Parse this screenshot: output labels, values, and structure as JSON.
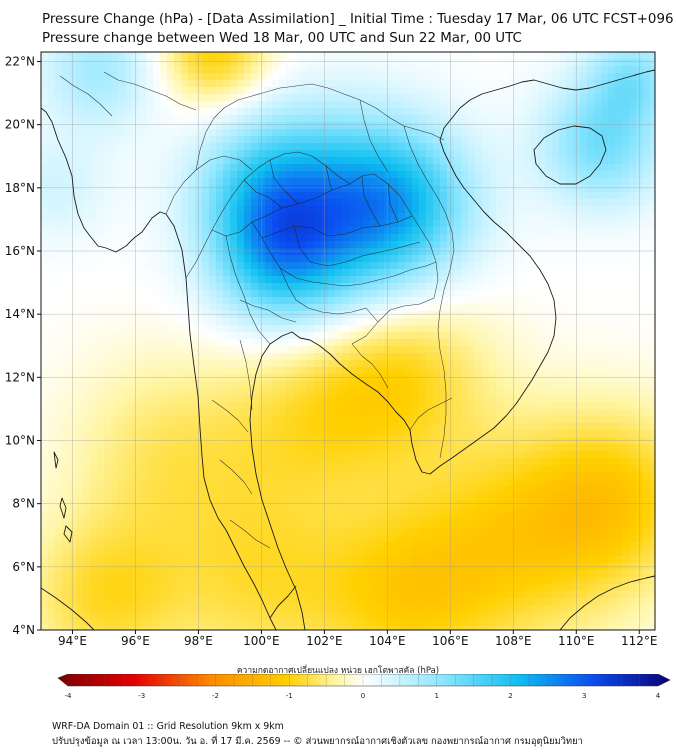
{
  "header": {
    "title_line1": "Pressure Change (hPa) - [Data Assimilation] _ Initial Time : Tuesday 17 Mar, 06 UTC FCST+096",
    "title_line2": "Pressure change between Wed 18 Mar, 00 UTC and Sun 22 Mar, 00 UTC"
  },
  "map": {
    "lon_range": [
      93,
      112.5
    ],
    "lat_range": [
      4,
      22.3
    ],
    "lat_ticks": [
      {
        "value": 22,
        "label": "22°N"
      },
      {
        "value": 20,
        "label": "20°N"
      },
      {
        "value": 18,
        "label": "18°N"
      },
      {
        "value": 16,
        "label": "16°N"
      },
      {
        "value": 14,
        "label": "14°N"
      },
      {
        "value": 12,
        "label": "12°N"
      },
      {
        "value": 10,
        "label": "10°N"
      },
      {
        "value": 8,
        "label": "8°N"
      },
      {
        "value": 6,
        "label": "6°N"
      },
      {
        "value": 4,
        "label": "4°N"
      }
    ],
    "lon_ticks": [
      {
        "value": 94,
        "label": "94°E"
      },
      {
        "value": 96,
        "label": "96°E"
      },
      {
        "value": 98,
        "label": "98°E"
      },
      {
        "value": 100,
        "label": "100°E"
      },
      {
        "value": 102,
        "label": "102°E"
      },
      {
        "value": 104,
        "label": "104°E"
      },
      {
        "value": 106,
        "label": "106°E"
      },
      {
        "value": 108,
        "label": "108°E"
      },
      {
        "value": 110,
        "label": "110°E"
      },
      {
        "value": 112,
        "label": "112°E"
      }
    ],
    "field_centers": [
      {
        "lon": 102.5,
        "lat": 17.0,
        "value": 1.8,
        "spread": 2.2
      },
      {
        "lon": 100.2,
        "lat": 17.8,
        "value": 1.3,
        "spread": 1.6
      },
      {
        "lon": 104.5,
        "lat": 17.6,
        "value": 1.2,
        "spread": 1.6
      },
      {
        "lon": 100.5,
        "lat": 15.6,
        "value": 1.1,
        "spread": 1.4
      },
      {
        "lon": 110.8,
        "lat": 19.4,
        "value": 1.2,
        "spread": 1.4
      },
      {
        "lon": 111.8,
        "lat": 21.5,
        "value": 0.9,
        "spread": 1.0
      },
      {
        "lon": 94.8,
        "lat": 21.7,
        "value": 0.8,
        "spread": 1.3
      },
      {
        "lon": 93.5,
        "lat": 18.0,
        "value": 0.4,
        "spread": 1.2
      },
      {
        "lon": 98.5,
        "lat": 22.3,
        "value": -1.0,
        "spread": 1.2
      },
      {
        "lon": 104.3,
        "lat": 12.2,
        "value": -0.9,
        "spread": 2.0
      },
      {
        "lon": 101.5,
        "lat": 10.5,
        "value": -0.6,
        "spread": 2.0
      },
      {
        "lon": 97.0,
        "lat": 9.5,
        "value": -0.6,
        "spread": 2.2
      },
      {
        "lon": 108.0,
        "lat": 6.8,
        "value": -0.9,
        "spread": 2.5
      },
      {
        "lon": 111.3,
        "lat": 8.2,
        "value": -0.9,
        "spread": 2.0
      },
      {
        "lon": 100.0,
        "lat": 5.5,
        "value": -0.7,
        "spread": 2.2
      },
      {
        "lon": 95.0,
        "lat": 5.0,
        "value": -0.8,
        "spread": 1.8
      },
      {
        "lon": 104.5,
        "lat": 5.0,
        "value": -0.8,
        "spread": 2.0
      }
    ]
  },
  "colorbar": {
    "label": "ความกดอากาศเปลี่ยนแปลง หน่วย เฮกโตพาสคัล (hPa)",
    "range": [
      -4,
      4
    ],
    "ticks": [
      {
        "value": -4,
        "label": "-4"
      },
      {
        "value": -3,
        "label": "-3"
      },
      {
        "value": -2,
        "label": "-2"
      },
      {
        "value": -1,
        "label": "-1"
      },
      {
        "value": 0,
        "label": "0"
      },
      {
        "value": 1,
        "label": "1"
      },
      {
        "value": 2,
        "label": "2"
      },
      {
        "value": 3,
        "label": "3"
      },
      {
        "value": 4,
        "label": "4"
      }
    ],
    "stops": [
      {
        "value": -4,
        "color": "#7a0000"
      },
      {
        "value": -3,
        "color": "#e60000"
      },
      {
        "value": -2,
        "color": "#ff8a00"
      },
      {
        "value": -1,
        "color": "#ffd000"
      },
      {
        "value": -0.35,
        "color": "#fff6a8"
      },
      {
        "value": 0,
        "color": "#ffffff"
      },
      {
        "value": 0.35,
        "color": "#d8f6ff"
      },
      {
        "value": 1,
        "color": "#8fe6ff"
      },
      {
        "value": 2,
        "color": "#10c0f0"
      },
      {
        "value": 3,
        "color": "#0a4cf0"
      },
      {
        "value": 4,
        "color": "#0a0078"
      }
    ]
  },
  "footer": {
    "line1": "WRF-DA Domain 01 :: Grid Resolution 9km x 9km",
    "line2": "ปรับปรุงข้อมูล ณ เวลา 13:00น. วัน อ. ที่ 17 มี.ค. 2569 -- © ส่วนพยากรณ์อากาศเชิงตัวเลข กองพยากรณ์อากาศ กรมอุตุนิยมวิทยา"
  }
}
